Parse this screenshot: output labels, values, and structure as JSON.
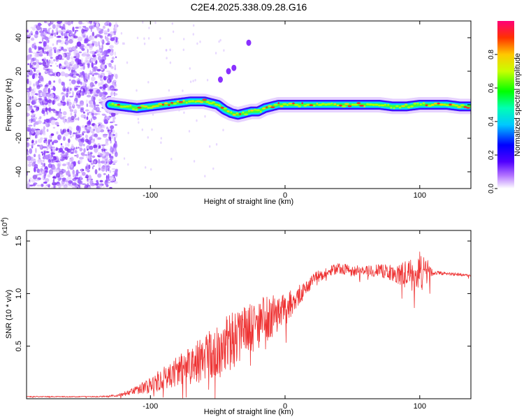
{
  "title": "C2E4.2025.338.09.28.G16",
  "chart_data": [
    {
      "type": "heatmap",
      "name": "spectrogram",
      "xlabel": "Height of straight line (km)",
      "ylabel": "Frequency (Hz)",
      "xlim": [
        -192,
        138
      ],
      "ylim": [
        -50,
        50
      ],
      "xticks": [
        -100,
        0,
        100
      ],
      "xtick_labels": [
        "-100",
        "0",
        "100"
      ],
      "yticks": [
        -40,
        -20,
        0,
        20,
        40
      ],
      "ytick_labels": [
        "-40",
        "-20",
        "0",
        "20",
        "40"
      ],
      "colorbar": {
        "label": "Normalized spectral amplitude",
        "range": [
          0,
          1
        ],
        "ticks": [
          0.0,
          0.2,
          0.4,
          0.6,
          0.8
        ],
        "tick_labels": [
          "0.0",
          "0.2",
          "0.4",
          "0.6",
          "0.8"
        ]
      },
      "track": {
        "x": [
          -130,
          -120,
          -110,
          -100,
          -90,
          -80,
          -70,
          -60,
          -55,
          -50,
          -45,
          -40,
          -35,
          -30,
          -25,
          -20,
          -15,
          -10,
          -5,
          0,
          10,
          20,
          30,
          40,
          50,
          60,
          70,
          80,
          90,
          100,
          110,
          120,
          130,
          138
        ],
        "y": [
          0,
          -1,
          -2,
          -1,
          0,
          1,
          2,
          2,
          1,
          0,
          -3,
          -5,
          -6,
          -5,
          -4,
          -4,
          -2,
          -1,
          0,
          0,
          0,
          0,
          0,
          0,
          0,
          0,
          0,
          -1,
          -1,
          0,
          0,
          0,
          -1,
          -1
        ]
      },
      "noise_region_x": [
        -192,
        -125
      ],
      "feature_points": [
        {
          "x": -38,
          "y": 22
        },
        {
          "x": -42,
          "y": 20
        },
        {
          "x": -48,
          "y": 15
        },
        {
          "x": -27,
          "y": 37
        }
      ]
    },
    {
      "type": "line",
      "name": "snr",
      "xlabel": "Height of straight line (km)",
      "ylabel": "SNR (10 * v/v)",
      "scale_label": "(x10",
      "scale_exp": "4",
      "scale_close": ")",
      "xlim": [
        -192,
        138
      ],
      "ylim": [
        0,
        1.6
      ],
      "xticks": [
        -100,
        0,
        100
      ],
      "xtick_labels": [
        "-100",
        "0",
        "100"
      ],
      "yticks": [
        0.5,
        1.0,
        1.5
      ],
      "ytick_labels": [
        "0.5",
        "1.0",
        "1.5"
      ],
      "color": "#ee3333",
      "series": [
        {
          "name": "SNR",
          "x": [
            -192,
            -180,
            -160,
            -140,
            -125,
            -110,
            -100,
            -90,
            -80,
            -70,
            -60,
            -50,
            -40,
            -30,
            -20,
            -10,
            0,
            10,
            20,
            30,
            40,
            50,
            60,
            70,
            80,
            90,
            100,
            105,
            110,
            120,
            130,
            138
          ],
          "y": [
            0.02,
            0.02,
            0.02,
            0.02,
            0.03,
            0.08,
            0.13,
            0.2,
            0.26,
            0.32,
            0.38,
            0.46,
            0.55,
            0.64,
            0.72,
            0.78,
            0.86,
            0.98,
            1.12,
            1.2,
            1.24,
            1.22,
            1.21,
            1.22,
            1.2,
            1.18,
            1.2,
            1.21,
            1.2,
            1.19,
            1.18,
            1.17
          ],
          "noise": [
            0.005,
            0.005,
            0.005,
            0.005,
            0.01,
            0.04,
            0.08,
            0.11,
            0.14,
            0.18,
            0.22,
            0.27,
            0.27,
            0.26,
            0.24,
            0.2,
            0.14,
            0.1,
            0.07,
            0.05,
            0.05,
            0.05,
            0.05,
            0.06,
            0.08,
            0.14,
            0.2,
            0.16,
            0.02,
            0.015,
            0.015,
            0.015
          ]
        }
      ]
    }
  ]
}
